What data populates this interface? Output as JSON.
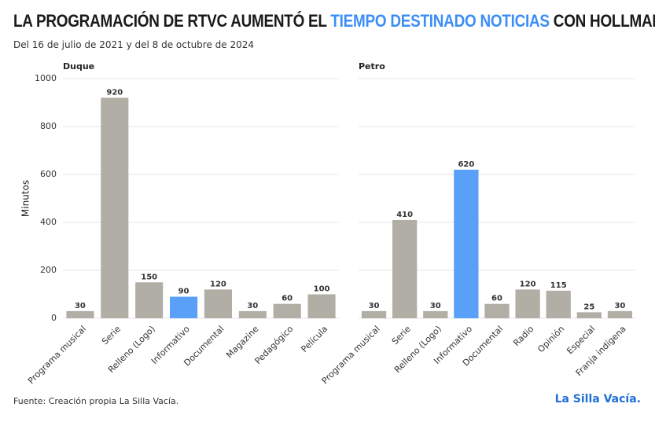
{
  "header": {
    "title": [
      "LA PROGRAMACIÓN DE RTVC AUMENTÓ EL",
      "TIEMPO DESTINADO NOTICIAS",
      "CON HOLLMAN MORRIS"
    ],
    "subtitle": "Del 16 de julio de 2021 y del 8 de octubre de 2024"
  },
  "chart_data": [
    {
      "type": "bar",
      "title": "Duque",
      "y_label": "Minutos",
      "categories": [
        "Programa musical",
        "Serie",
        "Relleno (Logo)",
        "Informativo",
        "Documental",
        "Magazine",
        "Pedagógico",
        "Película"
      ],
      "values": [
        30,
        920,
        150,
        90,
        120,
        30,
        60,
        100
      ],
      "colors": [
        "#b1aea6",
        "#b1aea6",
        "#b1aea6",
        "#5aa0f8",
        "#b1aea6",
        "#b1aea6",
        "#b1aea6",
        "#b1aea6"
      ],
      "ylim": [
        0,
        1000
      ],
      "yticks": [
        0,
        200,
        400,
        600,
        800,
        1000
      ],
      "grid": true,
      "tick_labels": true
    },
    {
      "type": "bar",
      "title": "Petro",
      "categories": [
        "Programa musical",
        "Serie",
        "Relleno (Logo)",
        "Informativo",
        "Documental",
        "Radio",
        "Opinión",
        "Especial",
        "Franja indígena"
      ],
      "values": [
        30,
        410,
        30,
        620,
        60,
        120,
        115,
        25,
        30
      ],
      "colors": [
        "#b1aea6",
        "#b1aea6",
        "#b1aea6",
        "#5aa0f8",
        "#b1aea6",
        "#b1aea6",
        "#b1aea6",
        "#b1aea6",
        "#b1aea6"
      ],
      "ylim": [
        0,
        1000
      ],
      "yticks": [
        0,
        200,
        400,
        600,
        800,
        1000
      ],
      "grid": true,
      "tick_labels": false
    }
  ],
  "footer": {
    "source": "Fuente: Creación propia La Silla Vacía.",
    "logo": "La Silla Vacía."
  }
}
